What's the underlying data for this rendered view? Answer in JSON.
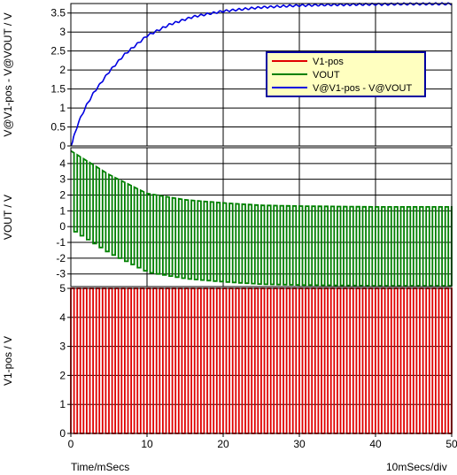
{
  "footer": {
    "x_axis_label": "Time/mSecs",
    "scale_label": "10mSecs/div"
  },
  "chart_data": [
    {
      "type": "line",
      "ylabel": "V@V1-pos - V@VOUT / V",
      "xlim": [
        0,
        50
      ],
      "ylim": [
        0,
        3.75
      ],
      "yticks": [
        "0",
        "0.5",
        "1",
        "1.5",
        "2",
        "2.5",
        "3",
        "3.5"
      ],
      "xticks": [
        "0",
        "10",
        "20",
        "30",
        "40",
        "50"
      ],
      "grid": true,
      "legend": {
        "placement": "top-right",
        "entries": [
          {
            "label": "V1-pos",
            "color": "#e00000"
          },
          {
            "label": "VOUT",
            "color": "#008000"
          },
          {
            "label": "V@V1-pos - V@VOUT",
            "color": "#0000e0"
          }
        ]
      },
      "series": [
        {
          "name": "V@V1-pos - V@VOUT",
          "color": "#0000e0",
          "x": [
            0,
            1,
            2,
            3,
            5,
            7,
            10,
            13,
            16,
            20,
            25,
            30,
            35,
            40,
            45,
            50
          ],
          "y": [
            0,
            0.62,
            1.05,
            1.4,
            1.95,
            2.4,
            2.9,
            3.2,
            3.4,
            3.55,
            3.65,
            3.7,
            3.72,
            3.73,
            3.74,
            3.74
          ],
          "ripple": 0.12
        }
      ]
    },
    {
      "type": "line",
      "ylabel": "VOUT / V",
      "xlim": [
        0,
        50
      ],
      "ylim": [
        -3.8,
        5
      ],
      "yticks": [
        "4",
        "3",
        "2",
        "1",
        "0",
        "-1",
        "-2",
        "-3"
      ],
      "xticks": [
        "0",
        "10",
        "20",
        "30",
        "40",
        "50"
      ],
      "grid": true,
      "series": [
        {
          "name": "VOUT",
          "color": "#008000",
          "period_ms": 0.833,
          "x": [
            0,
            5,
            10,
            15,
            20,
            25,
            30,
            40,
            50
          ],
          "upper": [
            4.8,
            3.3,
            2.1,
            1.7,
            1.5,
            1.35,
            1.3,
            1.25,
            1.25
          ],
          "lower": [
            -0.2,
            -1.7,
            -2.9,
            -3.3,
            -3.5,
            -3.65,
            -3.7,
            -3.75,
            -3.75
          ]
        }
      ]
    },
    {
      "type": "line",
      "ylabel": "V1-pos / V",
      "xlim": [
        0,
        50
      ],
      "ylim": [
        0,
        5
      ],
      "yticks": [
        "0",
        "1",
        "2",
        "3",
        "4",
        "5"
      ],
      "xticks": [
        "0",
        "10",
        "20",
        "30",
        "40",
        "50"
      ],
      "grid": true,
      "series": [
        {
          "name": "V1-pos",
          "color": "#e00000",
          "period_ms": 0.833,
          "high": 5,
          "low": 0
        }
      ]
    }
  ]
}
